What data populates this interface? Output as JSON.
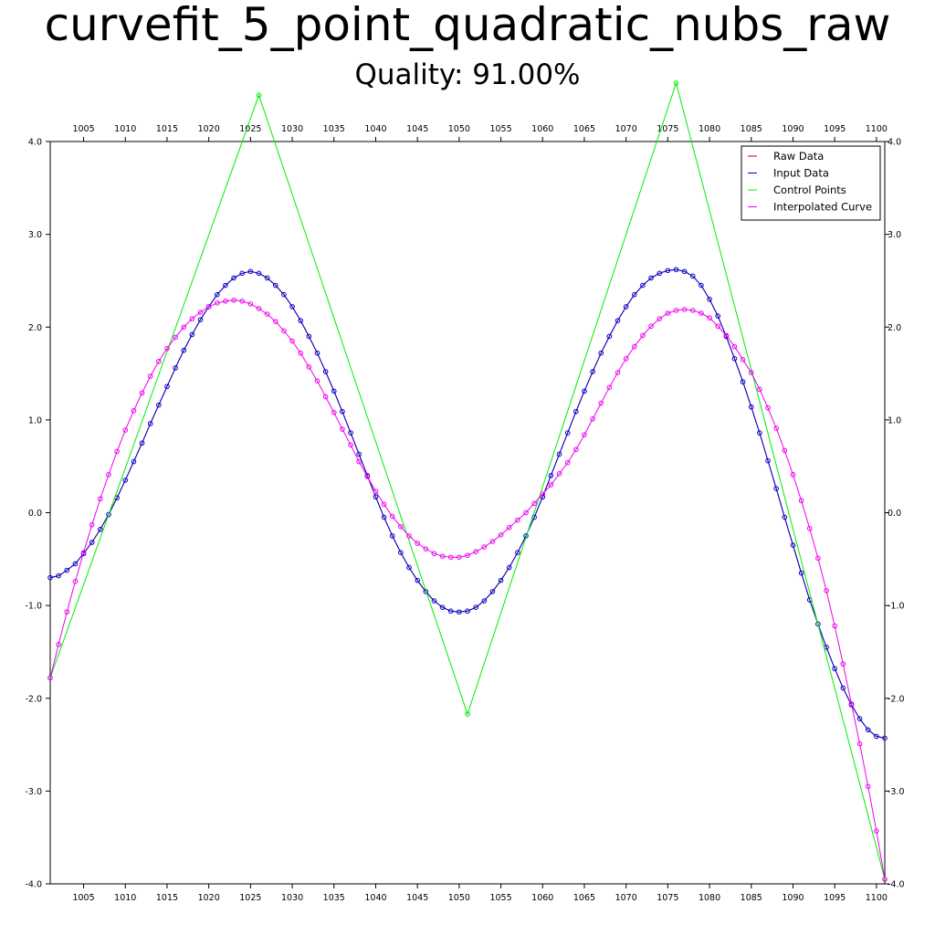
{
  "chart_data": {
    "type": "line",
    "title": "curvefit_5_point_quadratic_nubs_raw",
    "subtitle": "Quality: 91.00%",
    "xlim": [
      1001,
      1101
    ],
    "ylim": [
      -4.0,
      4.0
    ],
    "x_ticks": [
      1005,
      1010,
      1015,
      1020,
      1025,
      1030,
      1035,
      1040,
      1045,
      1050,
      1055,
      1060,
      1065,
      1070,
      1075,
      1080,
      1085,
      1090,
      1095,
      1100
    ],
    "y_ticks": [
      4.0,
      3.0,
      2.0,
      1.0,
      0.0,
      -1.0,
      -2.0,
      -3.0,
      -4.0
    ],
    "y_tick_labels": [
      "4.0",
      "3.0",
      "2.0",
      "1.0",
      "0.0",
      "-1.0",
      "-2.0",
      "-3.0",
      "-4.0"
    ],
    "grid": false,
    "legend_position": "top-right",
    "series": [
      {
        "name": "Raw Data",
        "color": "#cc0000",
        "marker": "none",
        "x": [
          1001,
          1002,
          1003,
          1004,
          1005,
          1006,
          1007,
          1008,
          1009,
          1010,
          1011,
          1012,
          1013,
          1014,
          1015,
          1016,
          1017,
          1018,
          1019,
          1020,
          1021,
          1022,
          1023,
          1024,
          1025,
          1026,
          1027,
          1028,
          1029,
          1030,
          1031,
          1032,
          1033,
          1034,
          1035,
          1036,
          1037,
          1038,
          1039,
          1040,
          1041,
          1042,
          1043,
          1044,
          1045,
          1046,
          1047,
          1048,
          1049,
          1050,
          1051,
          1052,
          1053,
          1054,
          1055,
          1056,
          1057,
          1058,
          1059,
          1060,
          1061,
          1062,
          1063,
          1064,
          1065,
          1066,
          1067,
          1068,
          1069,
          1070,
          1071,
          1072,
          1073,
          1074,
          1075,
          1076,
          1077,
          1078,
          1079,
          1080,
          1081,
          1082,
          1083,
          1084,
          1085,
          1086,
          1087,
          1088,
          1089,
          1090,
          1091,
          1092,
          1093,
          1094,
          1095,
          1096,
          1097,
          1098,
          1099,
          1100,
          1101
        ],
        "y": [
          -0.7,
          -0.68,
          -0.62,
          -0.55,
          -0.44,
          -0.32,
          -0.18,
          -0.02,
          0.16,
          0.35,
          0.55,
          0.75,
          0.96,
          1.16,
          1.36,
          1.56,
          1.75,
          1.92,
          2.08,
          2.22,
          2.35,
          2.45,
          2.53,
          2.58,
          2.6,
          2.58,
          2.53,
          2.45,
          2.35,
          2.22,
          2.07,
          1.9,
          1.72,
          1.52,
          1.31,
          1.09,
          0.86,
          0.63,
          0.4,
          0.17,
          -0.05,
          -0.25,
          -0.43,
          -0.59,
          -0.73,
          -0.85,
          -0.95,
          -1.02,
          -1.06,
          -1.07,
          -1.06,
          -1.02,
          -0.95,
          -0.85,
          -0.73,
          -0.59,
          -0.43,
          -0.25,
          -0.05,
          0.17,
          0.4,
          0.63,
          0.86,
          1.09,
          1.31,
          1.52,
          1.72,
          1.9,
          2.07,
          2.22,
          2.35,
          2.45,
          2.53,
          2.58,
          2.61,
          2.62,
          2.6,
          2.55,
          2.45,
          2.3,
          2.12,
          1.9,
          1.66,
          1.41,
          1.14,
          0.86,
          0.56,
          0.26,
          -0.05,
          -0.35,
          -0.65,
          -0.94,
          -1.2,
          -1.45,
          -1.68,
          -1.89,
          -2.07,
          -2.22,
          -2.34,
          -2.41,
          -2.43
        ]
      },
      {
        "name": "Input Data",
        "color": "#0000cc",
        "marker": "circle",
        "x": [
          1001,
          1002,
          1003,
          1004,
          1005,
          1006,
          1007,
          1008,
          1009,
          1010,
          1011,
          1012,
          1013,
          1014,
          1015,
          1016,
          1017,
          1018,
          1019,
          1020,
          1021,
          1022,
          1023,
          1024,
          1025,
          1026,
          1027,
          1028,
          1029,
          1030,
          1031,
          1032,
          1033,
          1034,
          1035,
          1036,
          1037,
          1038,
          1039,
          1040,
          1041,
          1042,
          1043,
          1044,
          1045,
          1046,
          1047,
          1048,
          1049,
          1050,
          1051,
          1052,
          1053,
          1054,
          1055,
          1056,
          1057,
          1058,
          1059,
          1060,
          1061,
          1062,
          1063,
          1064,
          1065,
          1066,
          1067,
          1068,
          1069,
          1070,
          1071,
          1072,
          1073,
          1074,
          1075,
          1076,
          1077,
          1078,
          1079,
          1080,
          1081,
          1082,
          1083,
          1084,
          1085,
          1086,
          1087,
          1088,
          1089,
          1090,
          1091,
          1092,
          1093,
          1094,
          1095,
          1096,
          1097,
          1098,
          1099,
          1100,
          1101
        ],
        "y": [
          -0.7,
          -0.68,
          -0.62,
          -0.55,
          -0.44,
          -0.32,
          -0.18,
          -0.02,
          0.16,
          0.35,
          0.55,
          0.75,
          0.96,
          1.16,
          1.36,
          1.56,
          1.75,
          1.92,
          2.08,
          2.22,
          2.35,
          2.45,
          2.53,
          2.58,
          2.6,
          2.58,
          2.53,
          2.45,
          2.35,
          2.22,
          2.07,
          1.9,
          1.72,
          1.52,
          1.31,
          1.09,
          0.86,
          0.63,
          0.4,
          0.17,
          -0.05,
          -0.25,
          -0.43,
          -0.59,
          -0.73,
          -0.85,
          -0.95,
          -1.02,
          -1.06,
          -1.07,
          -1.06,
          -1.02,
          -0.95,
          -0.85,
          -0.73,
          -0.59,
          -0.43,
          -0.25,
          -0.05,
          0.17,
          0.4,
          0.63,
          0.86,
          1.09,
          1.31,
          1.52,
          1.72,
          1.9,
          2.07,
          2.22,
          2.35,
          2.45,
          2.53,
          2.58,
          2.61,
          2.62,
          2.6,
          2.55,
          2.45,
          2.3,
          2.12,
          1.9,
          1.66,
          1.41,
          1.14,
          0.86,
          0.56,
          0.26,
          -0.05,
          -0.35,
          -0.65,
          -0.94,
          -1.2,
          -1.45,
          -1.68,
          -1.89,
          -2.07,
          -2.22,
          -2.34,
          -2.41,
          -2.43
        ]
      },
      {
        "name": "Control Points",
        "color": "#00ee00",
        "marker": "circle",
        "x": [
          1001,
          1026,
          1051,
          1076,
          1101
        ],
        "y": [
          -1.78,
          4.5,
          -2.17,
          4.63,
          -3.95
        ]
      },
      {
        "name": "Interpolated Curve",
        "color": "#ee00ee",
        "marker": "circle",
        "x": [
          1001,
          1002,
          1003,
          1004,
          1005,
          1006,
          1007,
          1008,
          1009,
          1010,
          1011,
          1012,
          1013,
          1014,
          1015,
          1016,
          1017,
          1018,
          1019,
          1020,
          1021,
          1022,
          1023,
          1024,
          1025,
          1026,
          1027,
          1028,
          1029,
          1030,
          1031,
          1032,
          1033,
          1034,
          1035,
          1036,
          1037,
          1038,
          1039,
          1040,
          1041,
          1042,
          1043,
          1044,
          1045,
          1046,
          1047,
          1048,
          1049,
          1050,
          1051,
          1052,
          1053,
          1054,
          1055,
          1056,
          1057,
          1058,
          1059,
          1060,
          1061,
          1062,
          1063,
          1064,
          1065,
          1066,
          1067,
          1068,
          1069,
          1070,
          1071,
          1072,
          1073,
          1074,
          1075,
          1076,
          1077,
          1078,
          1079,
          1080,
          1081,
          1082,
          1083,
          1084,
          1085,
          1086,
          1087,
          1088,
          1089,
          1090,
          1091,
          1092,
          1093,
          1094,
          1095,
          1096,
          1097,
          1098,
          1099,
          1100,
          1101
        ],
        "y": [
          -1.78,
          -1.42,
          -1.07,
          -0.74,
          -0.43,
          -0.13,
          0.15,
          0.41,
          0.66,
          0.89,
          1.1,
          1.29,
          1.47,
          1.63,
          1.77,
          1.89,
          2.0,
          2.09,
          2.16,
          2.22,
          2.26,
          2.28,
          2.29,
          2.28,
          2.25,
          2.2,
          2.14,
          2.06,
          1.96,
          1.85,
          1.72,
          1.57,
          1.42,
          1.25,
          1.08,
          0.9,
          0.73,
          0.55,
          0.39,
          0.23,
          0.09,
          -0.04,
          -0.15,
          -0.25,
          -0.33,
          -0.39,
          -0.44,
          -0.47,
          -0.48,
          -0.48,
          -0.46,
          -0.42,
          -0.37,
          -0.31,
          -0.24,
          -0.16,
          -0.08,
          0.0,
          0.1,
          0.2,
          0.3,
          0.42,
          0.54,
          0.68,
          0.84,
          1.01,
          1.18,
          1.35,
          1.51,
          1.66,
          1.79,
          1.91,
          2.01,
          2.09,
          2.15,
          2.18,
          2.19,
          2.18,
          2.15,
          2.1,
          2.01,
          1.91,
          1.79,
          1.65,
          1.51,
          1.33,
          1.13,
          0.91,
          0.67,
          0.41,
          0.13,
          -0.17,
          -0.49,
          -0.84,
          -1.22,
          -1.63,
          -2.06,
          -2.49,
          -2.95,
          -3.43,
          -3.95
        ]
      }
    ]
  }
}
